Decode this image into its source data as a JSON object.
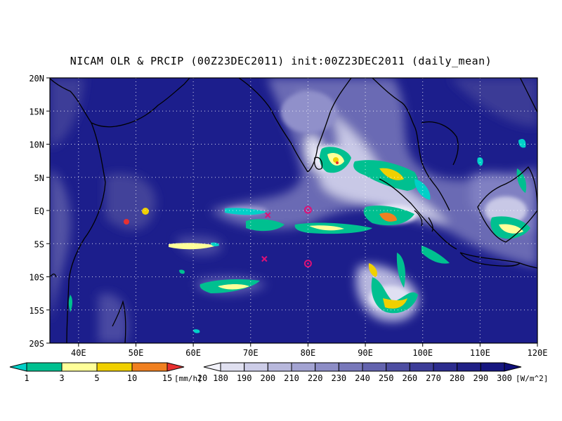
{
  "title": "NICAM OLR & PRCIP (00Z23DEC2011) init:00Z23DEC2011 (daily_mean)",
  "map": {
    "lon_range": [
      35,
      120
    ],
    "lat_range": [
      -20,
      20
    ],
    "lat_ticks": [
      {
        "value": 20,
        "label": "20N"
      },
      {
        "value": 15,
        "label": "15N"
      },
      {
        "value": 10,
        "label": "10N"
      },
      {
        "value": 5,
        "label": "5N"
      },
      {
        "value": 0,
        "label": "EQ"
      },
      {
        "value": -5,
        "label": "5S"
      },
      {
        "value": -10,
        "label": "10S"
      },
      {
        "value": -15,
        "label": "15S"
      },
      {
        "value": -20,
        "label": "20S"
      }
    ],
    "lon_ticks": [
      {
        "value": 40,
        "label": "40E"
      },
      {
        "value": 50,
        "label": "50E"
      },
      {
        "value": 60,
        "label": "60E"
      },
      {
        "value": 70,
        "label": "70E"
      },
      {
        "value": 80,
        "label": "80E"
      },
      {
        "value": 90,
        "label": "90E"
      },
      {
        "value": 100,
        "label": "100E"
      },
      {
        "value": 110,
        "label": "110E"
      },
      {
        "value": 120,
        "label": "120E"
      }
    ],
    "grid": true,
    "markers": [
      {
        "symbol": "x",
        "lon": 73,
        "lat": -0.7,
        "color": "#dd1177"
      },
      {
        "symbol": "x",
        "lon": 72.4,
        "lat": -7.3,
        "color": "#dd1177"
      },
      {
        "symbol": "diamond",
        "lon": 80,
        "lat": 0.1,
        "color": "#dd1177"
      },
      {
        "symbol": "diamond",
        "lon": 80,
        "lat": -8.0,
        "color": "#dd1177"
      }
    ],
    "colors": {
      "ocean_base": "#1c1e8c",
      "land_line": "#000000",
      "grid": "#ffffff"
    }
  },
  "precip_legend": {
    "labels": [
      "1",
      "3",
      "5",
      "10",
      "15",
      "20"
    ],
    "units": "[mm/h]",
    "colors": [
      "#00d0c8",
      "#00c090",
      "#ffff99",
      "#f0d000",
      "#f08020",
      "#e83030"
    ]
  },
  "olr_legend": {
    "labels": [
      "180",
      "190",
      "200",
      "210",
      "220",
      "230",
      "240",
      "250",
      "260",
      "270",
      "280",
      "290",
      "300"
    ],
    "units": "[W/m^2]",
    "colors": [
      "#f2f2fa",
      "#e0e0f0",
      "#cdcde8",
      "#b8b8dc",
      "#a3a3d2",
      "#8d8dc6",
      "#7878ba",
      "#6363ae",
      "#4e4ea2",
      "#3c3c98",
      "#2c2c8e",
      "#202086",
      "#161680",
      "#0e0e78"
    ]
  }
}
